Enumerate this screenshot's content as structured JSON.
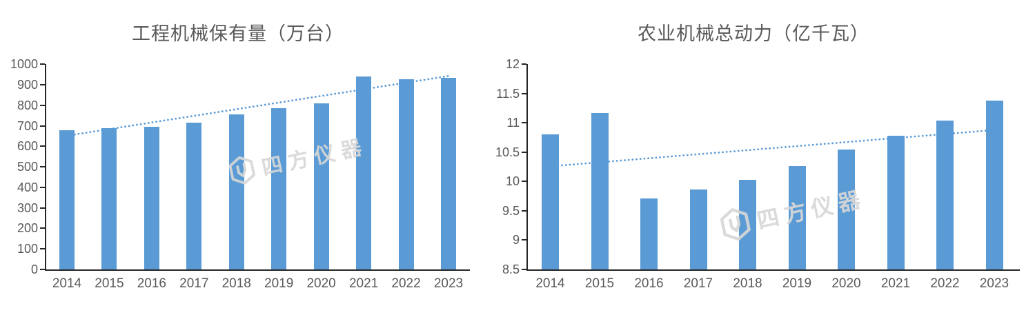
{
  "page": {
    "background": "#ffffff"
  },
  "watermark": {
    "text": "四方仪器",
    "logo_icon": "hexagon-logo-icon",
    "color": "#d7d7d7"
  },
  "colors": {
    "bar": "#5B9BD5",
    "trendline": "#5B9BD5",
    "axis_line": "#262626",
    "tick_label": "#595959",
    "title": "#595959"
  },
  "chart_data": [
    {
      "type": "bar",
      "title": "工程机械保有量（万台）",
      "categories": [
        "2014",
        "2015",
        "2016",
        "2017",
        "2018",
        "2019",
        "2020",
        "2021",
        "2022",
        "2023"
      ],
      "values": [
        678,
        690,
        697,
        717,
        756,
        785,
        811,
        940,
        926,
        933
      ],
      "ylim": [
        0,
        1000
      ],
      "ytick_step": 100,
      "ytick_labels": [
        "0",
        "100",
        "200",
        "300",
        "400",
        "500",
        "600",
        "700",
        "800",
        "900",
        "1000"
      ],
      "xlabel": "",
      "ylabel": "",
      "grid": false,
      "legend": "none",
      "trendline": {
        "type": "linear",
        "style": "dotted",
        "start_value": 652,
        "end_value": 943
      }
    },
    {
      "type": "bar",
      "title": "农业机械总动力（亿千瓦）",
      "categories": [
        "2014",
        "2015",
        "2016",
        "2017",
        "2018",
        "2019",
        "2020",
        "2021",
        "2022",
        "2023"
      ],
      "values": [
        10.81,
        11.17,
        9.71,
        9.87,
        10.03,
        10.26,
        10.55,
        10.78,
        11.04,
        11.38
      ],
      "ylim": [
        8.5,
        12
      ],
      "ytick_step": 0.5,
      "ytick_labels": [
        "8.5",
        "9",
        "9.5",
        "10",
        "10.5",
        "11",
        "11.5",
        "12"
      ],
      "xlabel": "",
      "ylabel": "",
      "grid": false,
      "legend": "none",
      "trendline": {
        "type": "linear",
        "style": "dotted",
        "start_value": 10.26,
        "end_value": 10.88
      }
    }
  ]
}
